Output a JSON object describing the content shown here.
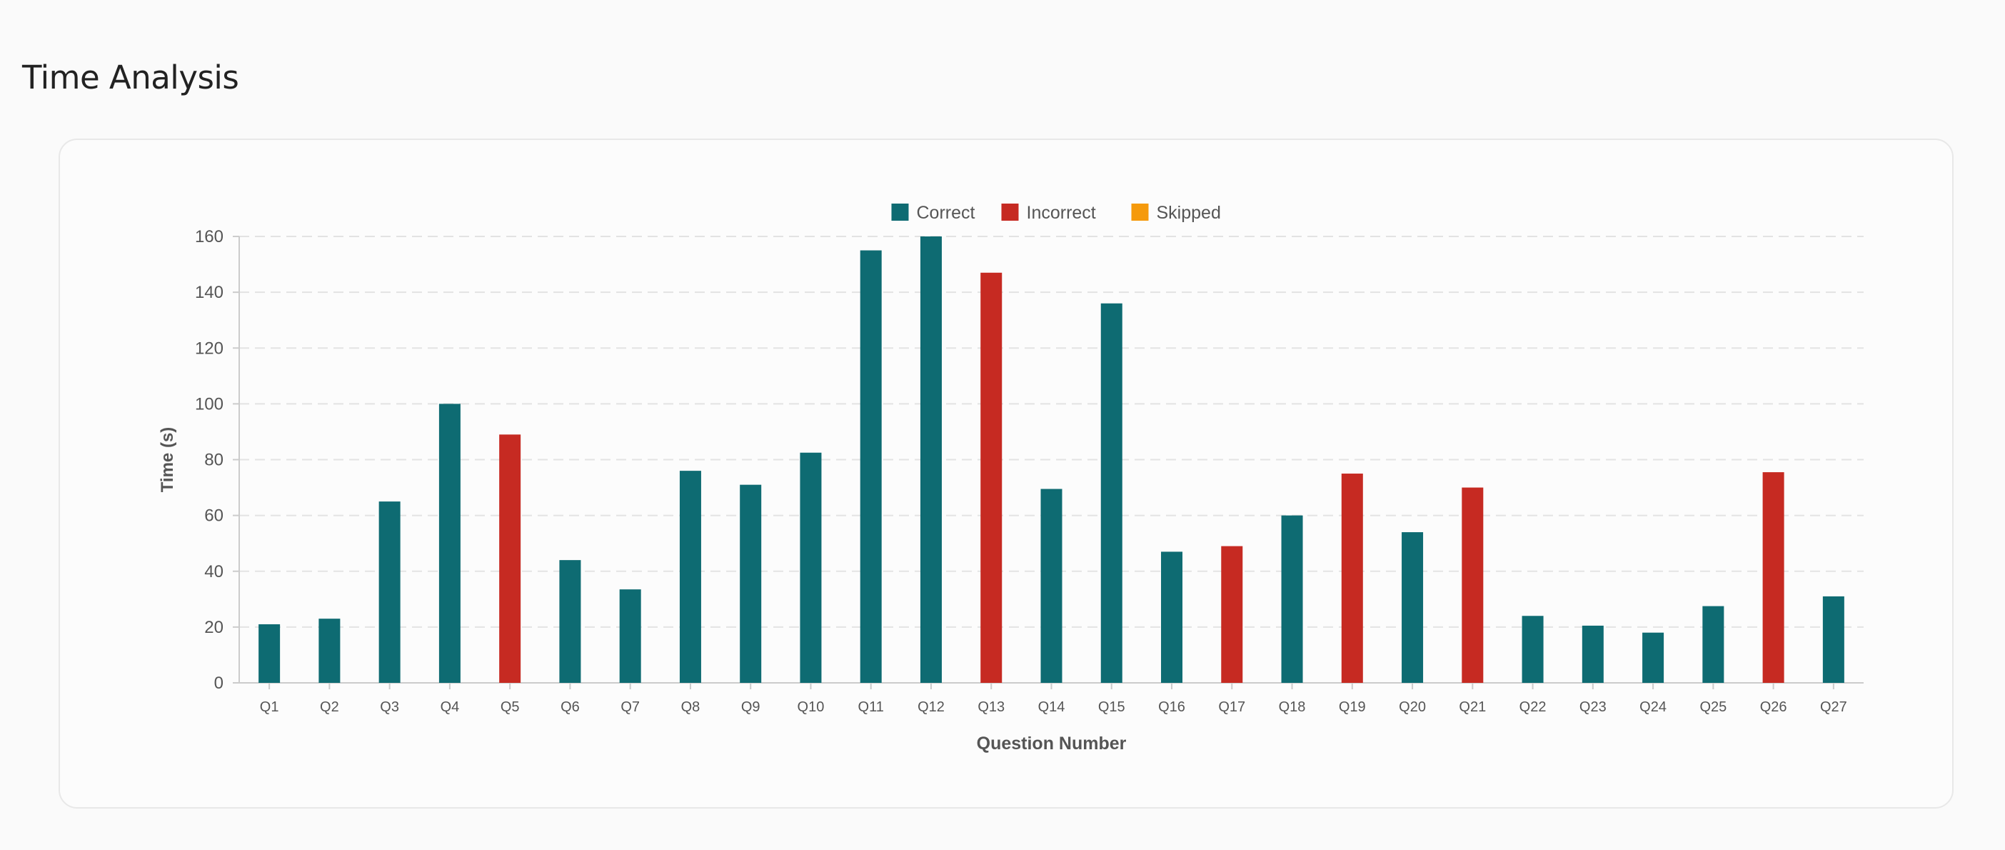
{
  "page": {
    "title": "Time Analysis"
  },
  "colors": {
    "correct": "#0e6b72",
    "incorrect": "#c62a22",
    "skipped": "#f59a0c",
    "grid": "#e3e3e3",
    "axis": "#cccccc",
    "text": "#555555"
  },
  "chart_data": {
    "type": "bar",
    "title": "",
    "xlabel": "Question Number",
    "ylabel": "Time (s)",
    "ylim": [
      0,
      160
    ],
    "yticks": [
      0,
      20,
      40,
      60,
      80,
      100,
      120,
      140,
      160
    ],
    "grid": "horizontal dashed",
    "legend_position": "top-center",
    "legend": [
      {
        "key": "correct",
        "label": "Correct"
      },
      {
        "key": "incorrect",
        "label": "Incorrect"
      },
      {
        "key": "skipped",
        "label": "Skipped"
      }
    ],
    "categories": [
      "Q1",
      "Q2",
      "Q3",
      "Q4",
      "Q5",
      "Q6",
      "Q7",
      "Q8",
      "Q9",
      "Q10",
      "Q11",
      "Q12",
      "Q13",
      "Q14",
      "Q15",
      "Q16",
      "Q17",
      "Q18",
      "Q19",
      "Q20",
      "Q21",
      "Q22",
      "Q23",
      "Q24",
      "Q25",
      "Q26",
      "Q27"
    ],
    "values": [
      21,
      23,
      65,
      100,
      89,
      44,
      33.5,
      76,
      71,
      82.5,
      155,
      160,
      147,
      69.5,
      136,
      47,
      49,
      60,
      75,
      54,
      70,
      24,
      20.5,
      18,
      27.5,
      75.5,
      31
    ],
    "status": [
      "correct",
      "correct",
      "correct",
      "correct",
      "incorrect",
      "correct",
      "correct",
      "correct",
      "correct",
      "correct",
      "correct",
      "correct",
      "incorrect",
      "correct",
      "correct",
      "correct",
      "incorrect",
      "correct",
      "incorrect",
      "correct",
      "incorrect",
      "correct",
      "correct",
      "correct",
      "correct",
      "incorrect",
      "correct"
    ]
  }
}
